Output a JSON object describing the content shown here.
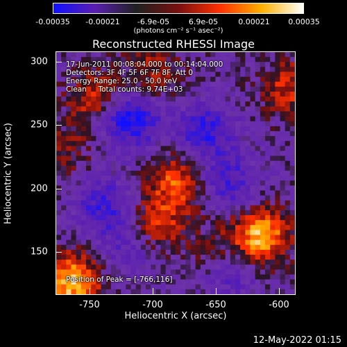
{
  "colorbar": {
    "ticks": [
      "-0.00035",
      "-0.00021",
      "-6.9e-05",
      "6.9e-05",
      "0.00021",
      "0.00035"
    ],
    "unit": "(photons cm",
    "unit_full": "(photons cm⁻² s⁻¹ asec⁻²)",
    "colors": [
      "#1010ff",
      "#5a1fb0",
      "#202020",
      "#7a1010",
      "#ff3000",
      "#ffb000",
      "#ffffff"
    ]
  },
  "chart_data": {
    "type": "heatmap",
    "title": "Reconstructed RHESSI Image",
    "xlabel": "Heliocentric X (arcsec)",
    "ylabel": "Heliocentric Y (arcsec)",
    "xlim": [
      -778,
      -588
    ],
    "ylim": [
      116,
      308
    ],
    "xticks": [
      -750,
      -700,
      -650,
      -600
    ],
    "yticks": [
      150,
      200,
      250,
      300
    ],
    "clim": [
      -0.00035,
      0.00035
    ],
    "peak": [
      -766,
      116
    ],
    "hotspots": [
      {
        "x": -766,
        "y": 125,
        "value": 0.00035
      },
      {
        "x": -615,
        "y": 162,
        "value": 0.00033
      },
      {
        "x": -682,
        "y": 205,
        "value": 0.00022
      },
      {
        "x": -698,
        "y": 172,
        "value": 0.00018
      },
      {
        "x": -745,
        "y": 272,
        "value": 0.0002
      },
      {
        "x": -700,
        "y": 292,
        "value": 0.00014
      },
      {
        "x": -592,
        "y": 280,
        "value": 0.00018
      },
      {
        "x": -650,
        "y": 150,
        "value": 0.00012
      },
      {
        "x": -770,
        "y": 230,
        "value": 0.0001
      }
    ],
    "coldspots": [
      {
        "x": -720,
        "y": 255,
        "value": -0.0003
      },
      {
        "x": -740,
        "y": 185,
        "value": -0.0002
      },
      {
        "x": -660,
        "y": 245,
        "value": -0.00022
      },
      {
        "x": -640,
        "y": 205,
        "value": -0.00018
      },
      {
        "x": -640,
        "y": 135,
        "value": -0.00016
      },
      {
        "x": -720,
        "y": 150,
        "value": -0.00012
      }
    ]
  },
  "info": {
    "line1": "17-Jun-2011 00:08:04.000 to 00:14:04.000",
    "line2": "Detectors: 3F 4F 5F 6F 7F 8F, Att 0",
    "line3": "Energy Range: 25.0 - 50.0 keV",
    "line4": "Clean     Total counts: 9.74E+03",
    "peak": "Position of Peak = [-766,116]"
  },
  "xtick_labels": [
    "-750",
    "-700",
    "-650",
    "-600"
  ],
  "ytick_labels": [
    "300",
    "250",
    "200",
    "150"
  ],
  "datestamp": "12-May-2022 01:15"
}
